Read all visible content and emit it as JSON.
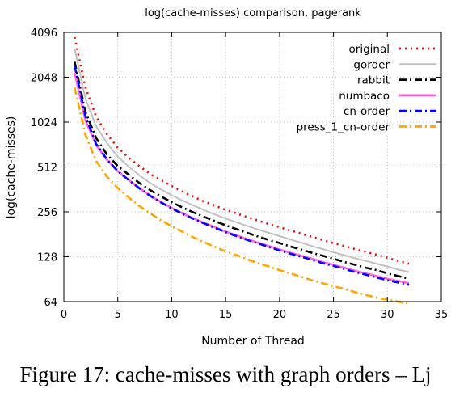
{
  "chart_data": {
    "type": "line",
    "title": "log(cache-misses) comparison, pagerank",
    "xlabel": "Number of Thread",
    "ylabel": "log(cache-misses)",
    "xlim": [
      0,
      35
    ],
    "ylim": [
      64,
      4096
    ],
    "yscale": "log2",
    "xticks": [
      0,
      5,
      10,
      15,
      20,
      25,
      30,
      35
    ],
    "yticks": [
      64,
      128,
      256,
      512,
      1024,
      2048,
      4096
    ],
    "grid": true,
    "legend_position": "top-right",
    "x": [
      1,
      2,
      3,
      4,
      5,
      6,
      7,
      8,
      9,
      10,
      11,
      12,
      13,
      14,
      15,
      16,
      17,
      18,
      19,
      20,
      21,
      22,
      23,
      24,
      25,
      26,
      27,
      28,
      29,
      30,
      31,
      32
    ],
    "series": [
      {
        "name": "original",
        "color": "#ff0000",
        "dash": "2,5",
        "values": [
          3800,
          1750,
          1110,
          850,
          690,
          590,
          520,
          460,
          418,
          382,
          350,
          324,
          300,
          282,
          264,
          250,
          236,
          224,
          212,
          202,
          192,
          183,
          174,
          166,
          158,
          151,
          144,
          138,
          132,
          126,
          120,
          115
        ]
      },
      {
        "name": "gorder",
        "color": "#c0c0c0",
        "dash": "none",
        "values": [
          3200,
          1470,
          960,
          740,
          600,
          515,
          450,
          400,
          362,
          331,
          305,
          283,
          263,
          246,
          231,
          218,
          206,
          195,
          185,
          176,
          167,
          159,
          151,
          144,
          137,
          131,
          125,
          120,
          115,
          110,
          105,
          101
        ]
      },
      {
        "name": "rabbit",
        "color": "#000000",
        "dash": "9,4,2,4",
        "values": [
          2600,
          1200,
          800,
          620,
          520,
          455,
          400,
          358,
          325,
          297,
          274,
          254,
          237,
          222,
          208,
          196,
          185,
          175,
          166,
          158,
          150,
          143,
          136,
          130,
          124,
          118,
          113,
          108,
          104,
          99,
          95,
          91
        ]
      },
      {
        "name": "numbaco",
        "color": "#ff66dd",
        "dash": "none",
        "values": [
          2200,
          1050,
          720,
          570,
          480,
          420,
          370,
          330,
          298,
          272,
          250,
          232,
          216,
          202,
          189,
          178,
          168,
          159,
          151,
          143,
          136,
          130,
          124,
          118,
          113,
          108,
          103,
          99,
          95,
          91,
          88,
          85
        ]
      },
      {
        "name": "cn-order",
        "color": "#0000ff",
        "dash": "9,4,2,4",
        "values": [
          2450,
          1120,
          730,
          575,
          480,
          418,
          368,
          328,
          296,
          270,
          248,
          230,
          214,
          200,
          187,
          176,
          166,
          157,
          149,
          141,
          134,
          128,
          122,
          116,
          111,
          106,
          101,
          97,
          93,
          89,
          86,
          83
        ]
      },
      {
        "name": "press_1_cn-order",
        "color": "#ffa500",
        "dash": "9,4,2,4",
        "values": [
          1750,
          840,
          560,
          440,
          370,
          320,
          280,
          250,
          225,
          205,
          188,
          173,
          160,
          149,
          139,
          131,
          123,
          116,
          110,
          104,
          99,
          94,
          89,
          85,
          81,
          78,
          74,
          71,
          68,
          66,
          64,
          62
        ]
      }
    ]
  },
  "caption": "Figure 17: cache-misses with graph orders – Lj"
}
